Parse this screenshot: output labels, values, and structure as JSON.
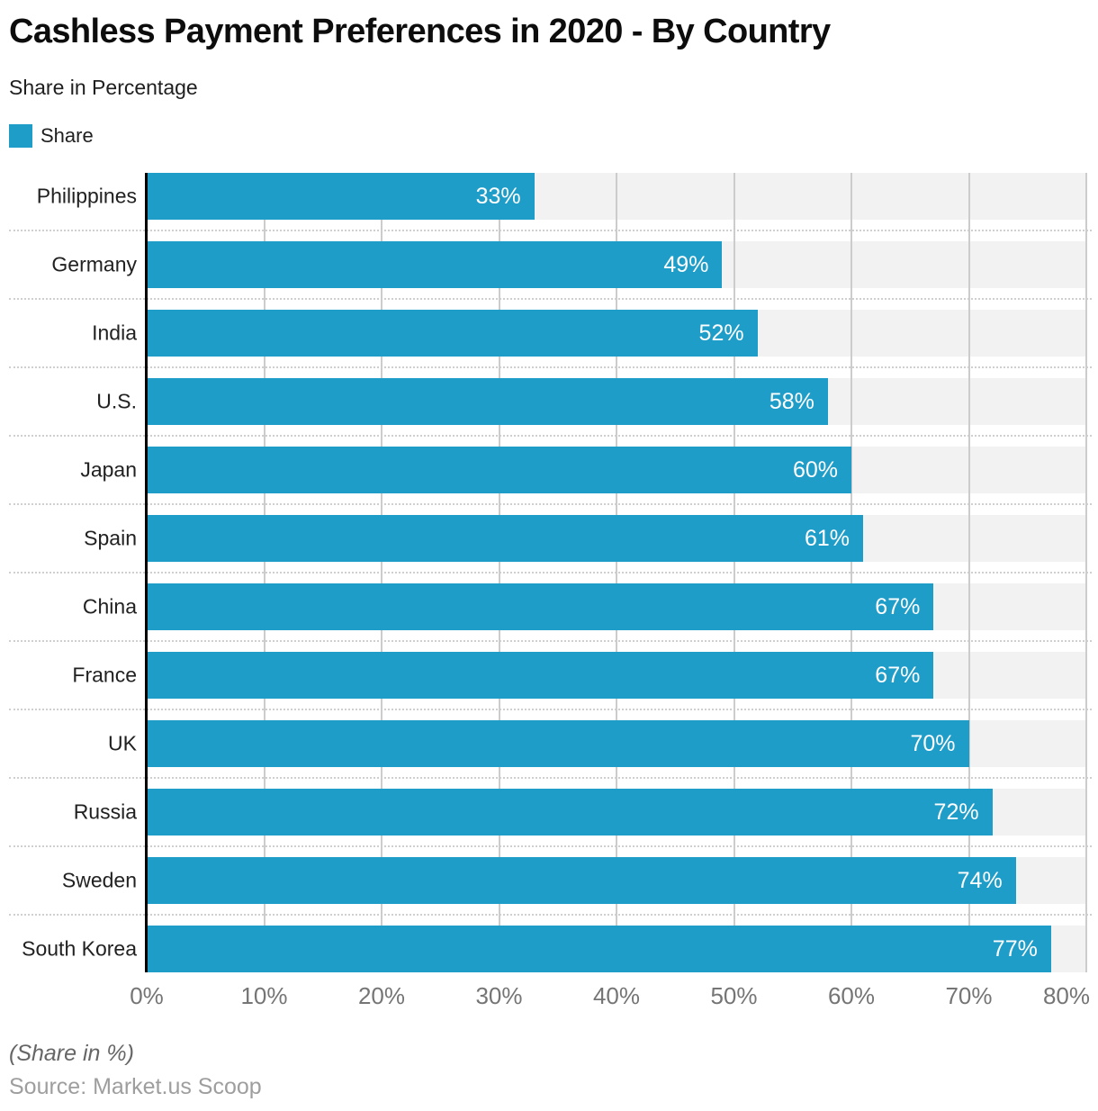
{
  "header": {
    "title": "Cashless Payment Preferences in 2020 - By Country",
    "subtitle": "Share in Percentage",
    "legend": [
      {
        "label": "Share",
        "color": "#1f9dc9"
      }
    ]
  },
  "chart_data": {
    "type": "bar",
    "orientation": "horizontal",
    "title": "Cashless Payment Preferences in 2020 - By Country",
    "subtitle": "Share in Percentage",
    "series_name": "Share",
    "categories": [
      "Philippines",
      "Germany",
      "India",
      "U.S.",
      "Japan",
      "Spain",
      "China",
      "France",
      "UK",
      "Russia",
      "Sweden",
      "South Korea"
    ],
    "values": [
      33,
      49,
      52,
      58,
      60,
      61,
      67,
      67,
      70,
      72,
      74,
      77
    ],
    "value_labels": [
      "33%",
      "49%",
      "52%",
      "58%",
      "60%",
      "61%",
      "67%",
      "67%",
      "70%",
      "72%",
      "74%",
      "77%"
    ],
    "xlim": [
      0,
      80
    ],
    "x_ticks": [
      {
        "value": 0,
        "label": "0%"
      },
      {
        "value": 10,
        "label": "10%"
      },
      {
        "value": 20,
        "label": "20%"
      },
      {
        "value": 30,
        "label": "30%"
      },
      {
        "value": 40,
        "label": "40%"
      },
      {
        "value": 50,
        "label": "50%"
      },
      {
        "value": 60,
        "label": "60%"
      },
      {
        "value": 70,
        "label": "70%"
      },
      {
        "value": 80,
        "label": "80%"
      }
    ],
    "grid": true,
    "legend_position": "top-left",
    "bar_color": "#1f9dc9",
    "band_color": "#f2f2f2",
    "gridline_color": "#cccccc"
  },
  "footer": {
    "note": "(Share in %)",
    "source": "Source: Market.us Scoop"
  }
}
